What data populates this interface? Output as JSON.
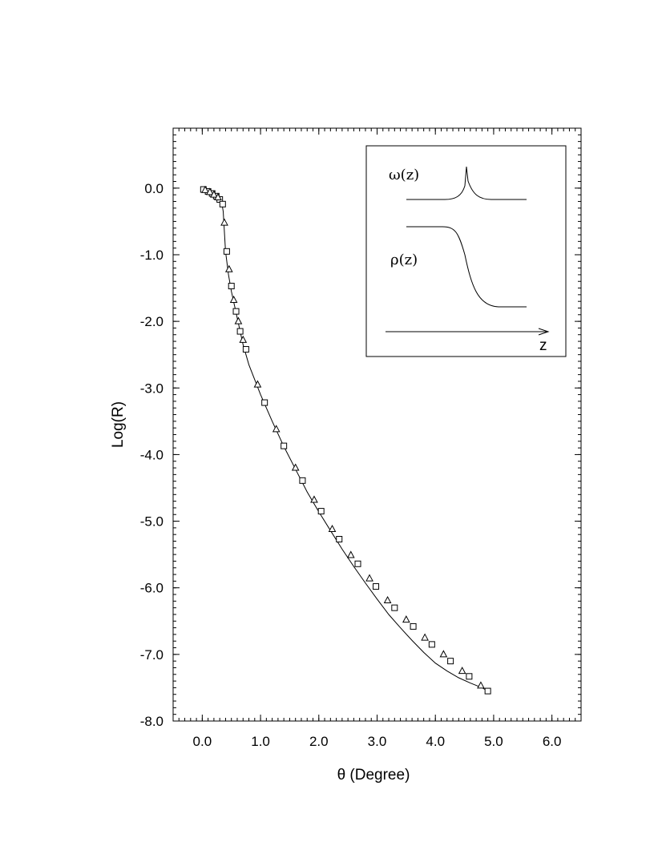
{
  "chart_data": {
    "type": "scatter",
    "xlabel": "θ (Degree)",
    "ylabel": "Log(R)",
    "xlim": [
      -0.5,
      6.5
    ],
    "ylim": [
      -8.0,
      0.9
    ],
    "x_ticks": [
      "0.0",
      "1.0",
      "2.0",
      "3.0",
      "4.0",
      "5.0",
      "6.0"
    ],
    "y_ticks": [
      "0.0",
      "-1.0",
      "-2.0",
      "-3.0",
      "-4.0",
      "-5.0",
      "-6.0",
      "-7.0",
      "-8.0"
    ],
    "curve": {
      "x": [
        0.0,
        0.1,
        0.2,
        0.28,
        0.33,
        0.36,
        0.4,
        0.45,
        0.5,
        0.6,
        0.7,
        0.8,
        1.0,
        1.2,
        1.4,
        1.6,
        1.8,
        2.0,
        2.2,
        2.4,
        2.6,
        2.8,
        3.0,
        3.2,
        3.4,
        3.6,
        3.8,
        4.0,
        4.2,
        4.4,
        4.6,
        4.8,
        4.9
      ],
      "y": [
        0.0,
        -0.04,
        -0.08,
        -0.13,
        -0.2,
        -0.35,
        -0.95,
        -1.3,
        -1.55,
        -1.95,
        -2.35,
        -2.65,
        -3.1,
        -3.5,
        -3.88,
        -4.22,
        -4.56,
        -4.86,
        -5.14,
        -5.42,
        -5.68,
        -5.93,
        -6.17,
        -6.4,
        -6.6,
        -6.79,
        -6.97,
        -7.13,
        -7.25,
        -7.35,
        -7.43,
        -7.5,
        -7.55
      ]
    },
    "series": [
      {
        "marker": "square",
        "x": [
          0.02,
          0.1,
          0.17,
          0.24,
          0.3,
          0.35,
          0.42,
          0.5,
          0.58,
          0.65,
          0.75,
          1.07,
          1.4,
          1.72,
          2.04,
          2.35,
          2.67,
          2.98,
          3.3,
          3.62,
          3.94,
          4.26,
          4.58,
          4.9
        ],
        "y": [
          -0.02,
          -0.05,
          -0.08,
          -0.12,
          -0.17,
          -0.24,
          -0.95,
          -1.47,
          -1.85,
          -2.15,
          -2.42,
          -3.22,
          -3.87,
          -4.39,
          -4.85,
          -5.27,
          -5.64,
          -5.98,
          -6.3,
          -6.58,
          -6.85,
          -7.1,
          -7.33,
          -7.55
        ]
      },
      {
        "marker": "triangle",
        "x": [
          0.05,
          0.13,
          0.2,
          0.27,
          0.38,
          0.46,
          0.54,
          0.62,
          0.7,
          0.95,
          1.27,
          1.6,
          1.92,
          2.23,
          2.55,
          2.87,
          3.18,
          3.5,
          3.82,
          4.14,
          4.46,
          4.78
        ],
        "y": [
          -0.03,
          -0.06,
          -0.1,
          -0.14,
          -0.52,
          -1.22,
          -1.68,
          -2.0,
          -2.28,
          -2.95,
          -3.62,
          -4.2,
          -4.68,
          -5.12,
          -5.51,
          -5.86,
          -6.19,
          -6.48,
          -6.75,
          -7.0,
          -7.25,
          -7.47
        ]
      }
    ],
    "grid": false,
    "legend": "none"
  },
  "inset": {
    "omega_label": "ω(z)",
    "rho_label": "ρ(z)",
    "axis_label": "z"
  }
}
